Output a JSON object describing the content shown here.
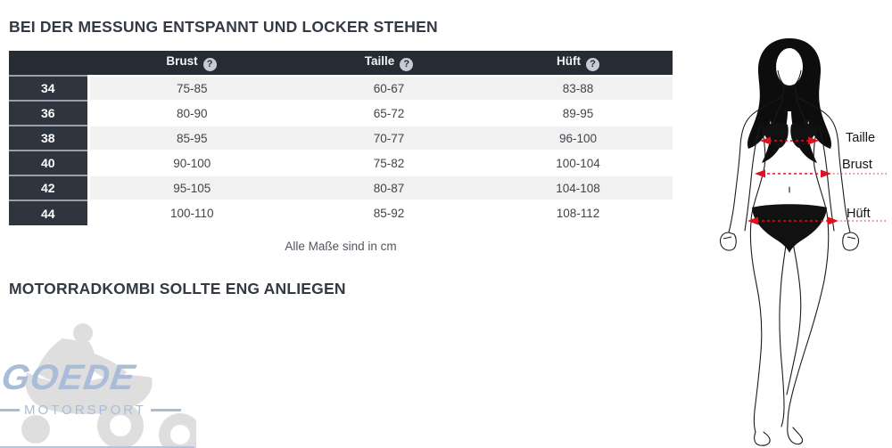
{
  "page": {
    "heading1": "BEI DER MESSUNG ENTSPANNT UND LOCKER STEHEN",
    "heading2": "MOTORRADKOMBI SOLLTE ENG ANLIEGEN",
    "table_note": "Alle Maße sind in cm"
  },
  "table": {
    "help_glyph": "?",
    "columns": [
      {
        "label": "Brust"
      },
      {
        "label": "Taille"
      },
      {
        "label": "Hüft"
      }
    ],
    "rows": [
      {
        "size": "34",
        "values": [
          "75-85",
          "60-67",
          "83-88"
        ]
      },
      {
        "size": "36",
        "values": [
          "80-90",
          "65-72",
          "89-95"
        ]
      },
      {
        "size": "38",
        "values": [
          "85-95",
          "70-77",
          "96-100"
        ]
      },
      {
        "size": "40",
        "values": [
          "90-100",
          "75-82",
          "100-104"
        ]
      },
      {
        "size": "42",
        "values": [
          "95-105",
          "80-87",
          "104-108"
        ]
      },
      {
        "size": "44",
        "values": [
          "100-110",
          "85-92",
          "108-112"
        ]
      }
    ]
  },
  "figure": {
    "labels": {
      "taille": "Taille",
      "brust": "Brust",
      "hueft": "Hüft"
    },
    "arrow_color": "#e01020"
  },
  "watermark": {
    "brand": "GOEDE",
    "subbrand": "MOTORSPORT",
    "color": "#a9bdd9"
  }
}
